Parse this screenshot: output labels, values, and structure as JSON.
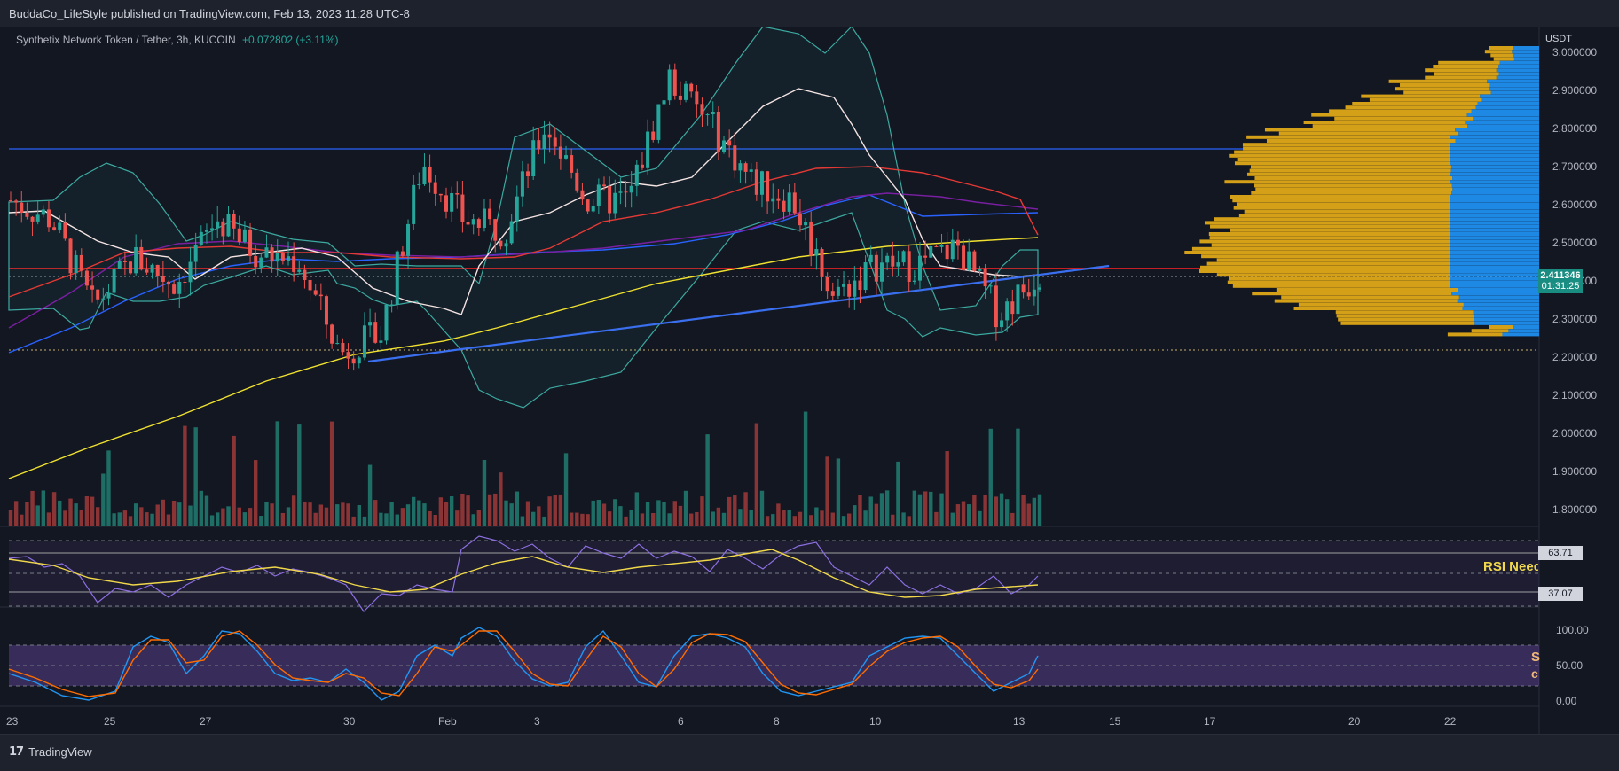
{
  "header": {
    "publisher_line": "BuddaCo_LifeStyle published on TradingView.com, Feb 13, 2023 11:28 UTC-8"
  },
  "legend": {
    "symbol": "Synthetix Network Token / Tether, 3h, KUCOIN",
    "change": "+0.072802 (+3.11%)"
  },
  "price_axis": {
    "currency": "USDT",
    "ticks": [
      "3.000000",
      "2.900000",
      "2.800000",
      "2.700000",
      "2.600000",
      "2.500000",
      "2.400000",
      "2.300000",
      "2.200000",
      "2.100000",
      "2.000000",
      "1.900000",
      "1.800000"
    ]
  },
  "last_price": {
    "value": "2.411346",
    "countdown": "01:31:25"
  },
  "rsi_panel": {
    "upper_value": "63.71",
    "lower_value": "37.07",
    "annotation": "RSI Need"
  },
  "stoch_panel": {
    "ticks": [
      "100.00",
      "50.00",
      "0.00"
    ],
    "annotation_a": "S",
    "annotation_b": "c"
  },
  "time_axis": {
    "labels": [
      "23",
      "25",
      "27",
      "30",
      "Feb",
      "3",
      "6",
      "8",
      "10",
      "13",
      "15",
      "17",
      "20",
      "22"
    ]
  },
  "footer": {
    "brand": "TradingView"
  },
  "colors": {
    "up": "#26a69a",
    "down": "#ef5350",
    "bollinger": "#3ca9a0",
    "ema_fast": "#f4e3e3",
    "ema_red": "#e53935",
    "ema_purple": "#7b1fa2",
    "ema_blue": "#2962ff",
    "ema_yellow": "#f0e130",
    "trendline": "#3a6ff0",
    "hline_red": "#ff2222",
    "hline_blue": "#2962ff",
    "volume_profile": "#d4a017",
    "profile_blue": "#1e88e5",
    "rsi": "#8d6fe0",
    "rsi_ma": "#f0d84a",
    "stoch_k": "#2196f3",
    "stoch_d": "#ff6d00"
  },
  "chart_data": {
    "type": "candlestick",
    "title": "Synthetix Network Token / Tether, 3h, KUCOIN",
    "x_labels": [
      "23",
      "25",
      "27",
      "30",
      "Feb",
      "3",
      "6",
      "8",
      "10",
      "13",
      "15",
      "17",
      "20",
      "22"
    ],
    "y_range": [
      1.75,
      3.05
    ],
    "price_key_points": [
      {
        "x": "23",
        "close": 2.6
      },
      {
        "x": "24",
        "close": 2.55
      },
      {
        "x": "25",
        "close": 2.32
      },
      {
        "x": "26",
        "close": 2.45
      },
      {
        "x": "27",
        "close": 2.38
      },
      {
        "x": "28",
        "close": 2.55
      },
      {
        "x": "29",
        "close": 2.46
      },
      {
        "x": "30",
        "close": 2.44
      },
      {
        "x": "31",
        "close": 2.2
      },
      {
        "x": "Feb",
        "close": 2.25
      },
      {
        "x": "Feb1.5",
        "close": 2.7
      },
      {
        "x": "2",
        "close": 2.55
      },
      {
        "x": "3",
        "close": 2.52
      },
      {
        "x": "4",
        "close": 2.8
      },
      {
        "x": "5",
        "close": 2.6
      },
      {
        "x": "6",
        "close": 2.6
      },
      {
        "x": "7",
        "close": 2.92
      },
      {
        "x": "8",
        "close": 2.8
      },
      {
        "x": "8.5",
        "close": 2.65
      },
      {
        "x": "9",
        "close": 2.6
      },
      {
        "x": "9.5",
        "close": 2.35
      },
      {
        "x": "10",
        "close": 2.43
      },
      {
        "x": "11",
        "close": 2.43
      },
      {
        "x": "12",
        "close": 2.48
      },
      {
        "x": "12.5",
        "close": 2.3
      },
      {
        "x": "13",
        "close": 2.41
      }
    ],
    "horizontal_lines": [
      2.75,
      2.432,
      2.42,
      2.22
    ],
    "bollinger_upper_max": 3.02,
    "bollinger_lower_min": 2.05,
    "rsi_ma_levels": [
      63.71,
      37.07
    ],
    "stoch_range": [
      0,
      100
    ]
  }
}
